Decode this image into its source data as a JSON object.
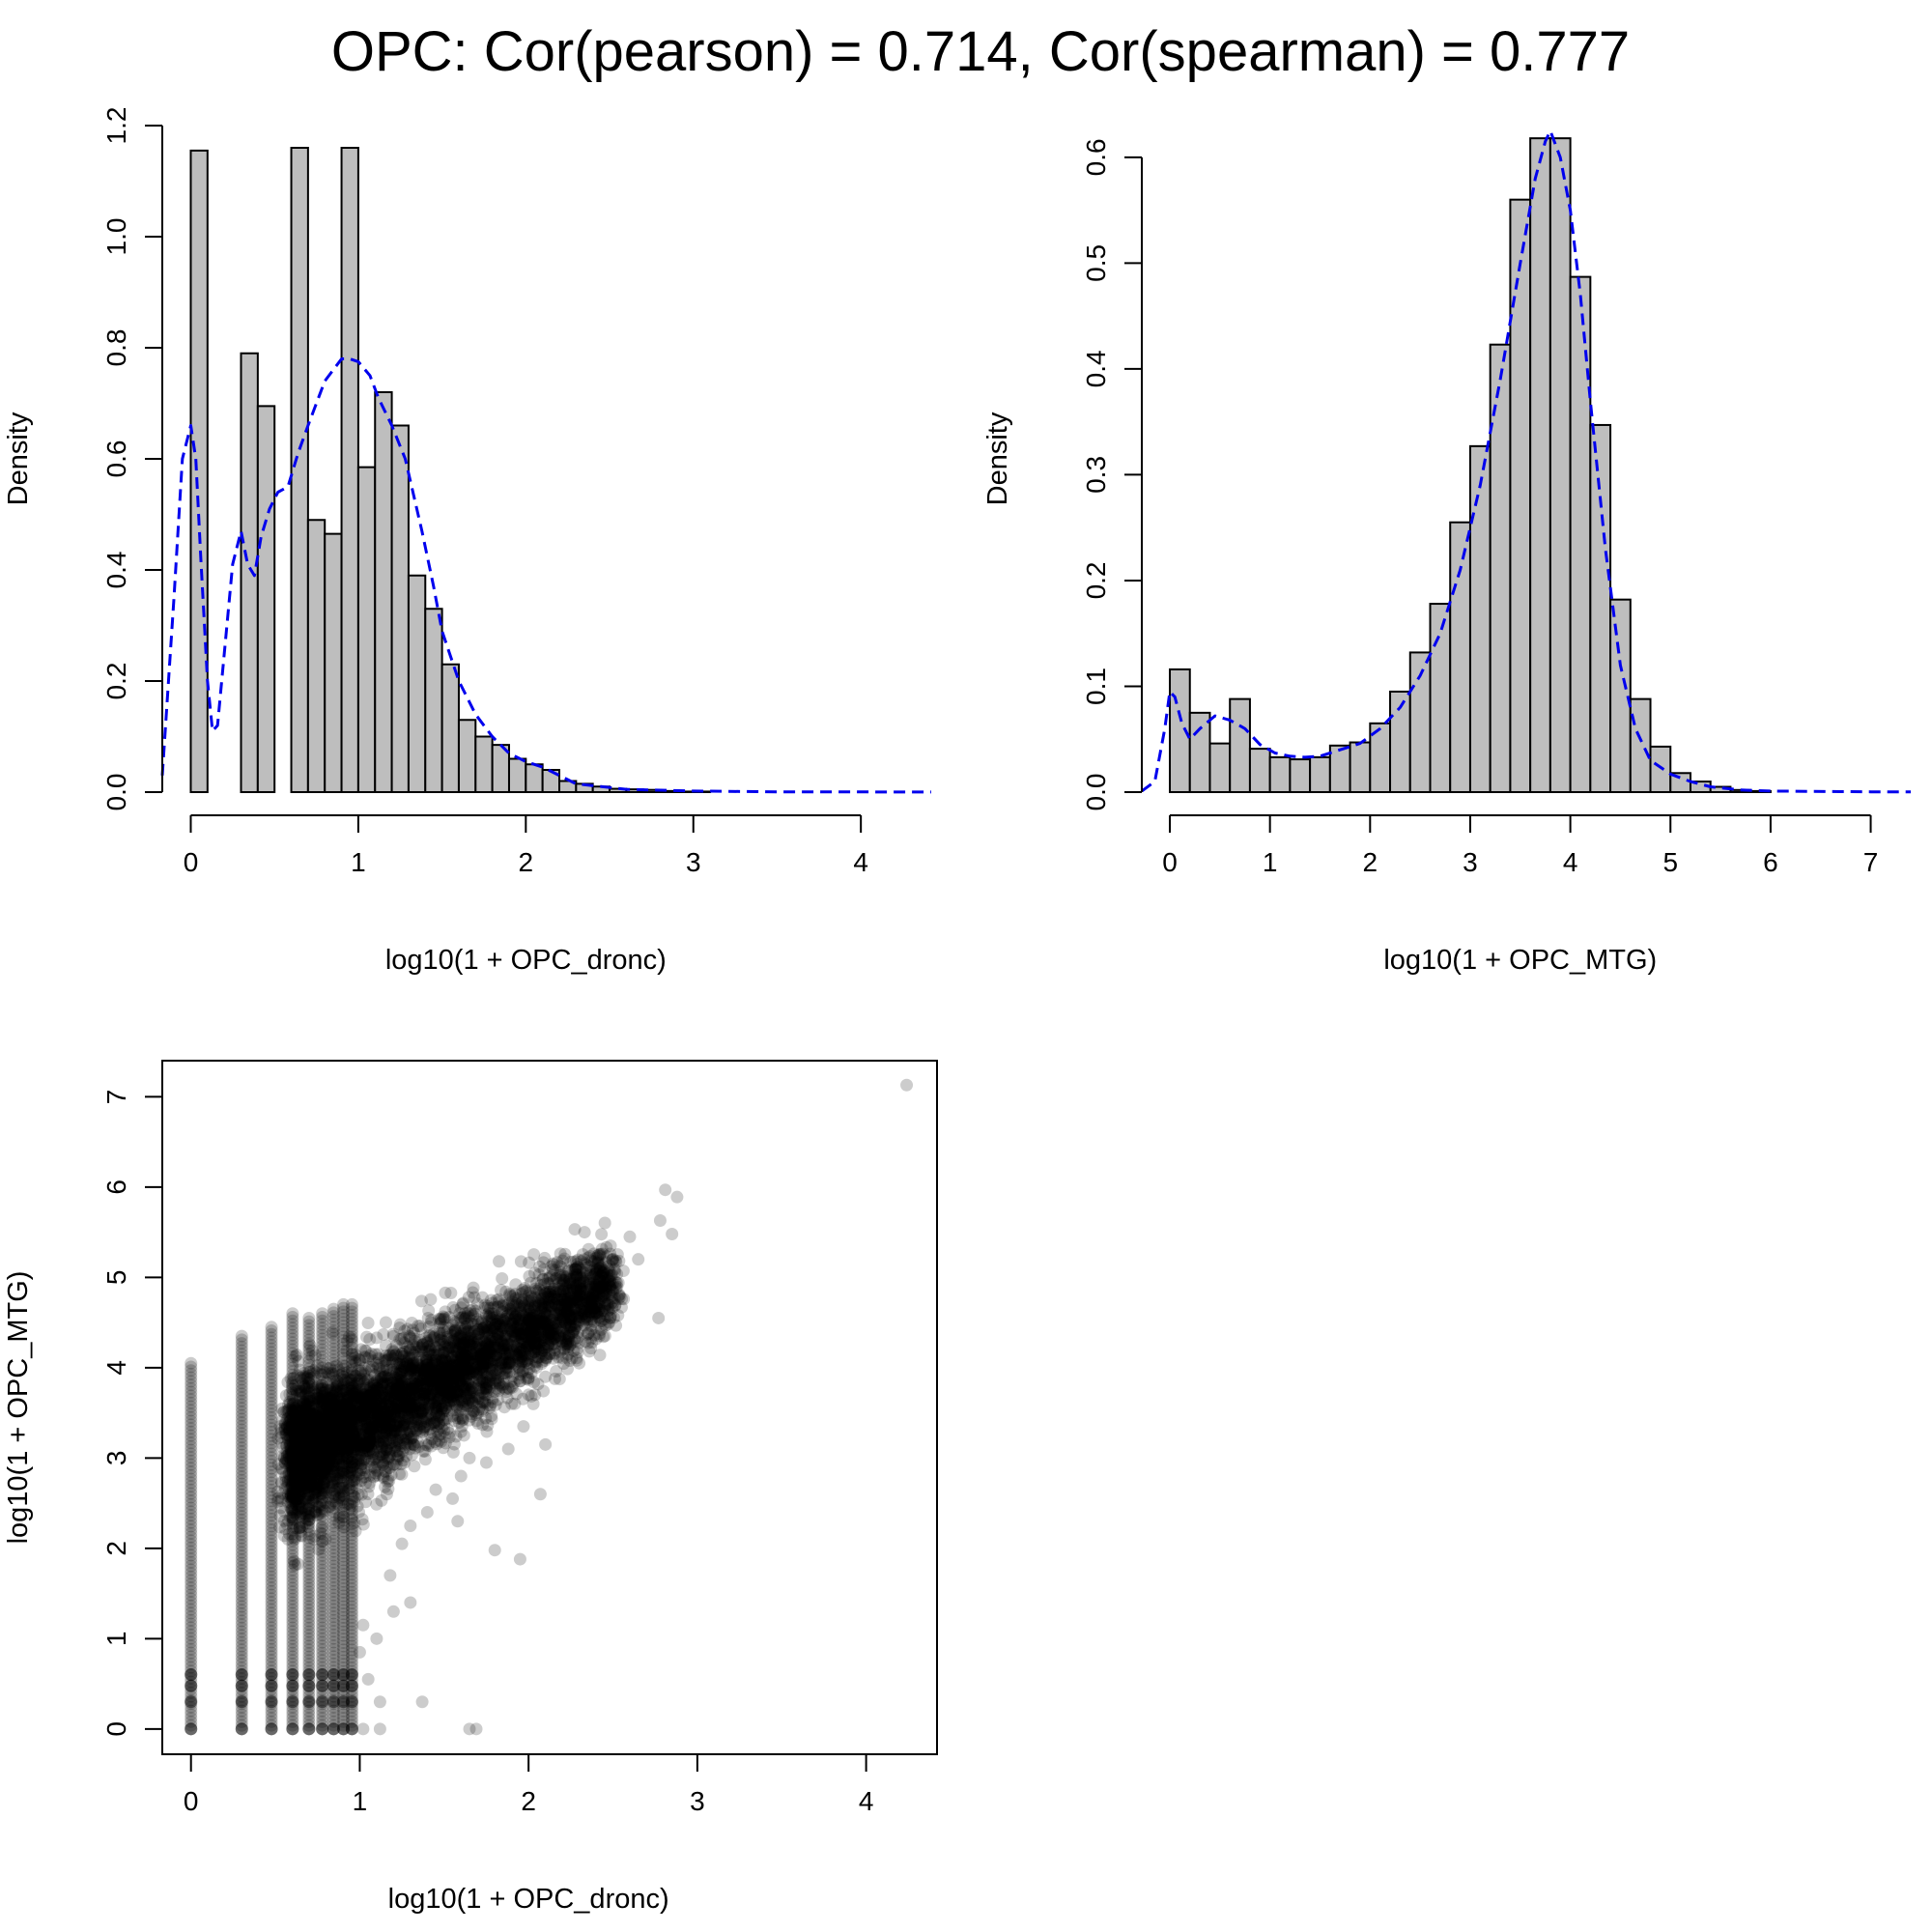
{
  "page_title": "OPC: Cor(pearson) = 0.714, Cor(spearman) = 0.777",
  "colors": {
    "bar_fill": "#bebebe",
    "bar_stroke": "#000000",
    "density_line": "#0000ee",
    "points": "#000000"
  },
  "chart_data": [
    {
      "type": "bar",
      "subtype": "histogram",
      "xlabel": "log10(1 + OPC_dronc)",
      "ylabel": "Density",
      "xlim": [
        -0.17,
        4.42
      ],
      "ylim": [
        0,
        1.2
      ],
      "xticks": [
        0,
        1,
        2,
        3,
        4
      ],
      "yticks": [
        0.0,
        0.2,
        0.4,
        0.6,
        0.8,
        1.0,
        1.2
      ],
      "bin_width": 0.1,
      "bins": [
        {
          "x0": 0.0,
          "x1": 0.1,
          "density": 1.155
        },
        {
          "x0": 0.3,
          "x1": 0.4,
          "density": 0.79
        },
        {
          "x0": 0.4,
          "x1": 0.5,
          "density": 0.695
        },
        {
          "x0": 0.6,
          "x1": 0.7,
          "density": 1.16
        },
        {
          "x0": 0.7,
          "x1": 0.8,
          "density": 0.49
        },
        {
          "x0": 0.8,
          "x1": 0.9,
          "density": 0.465
        },
        {
          "x0": 0.9,
          "x1": 1.0,
          "density": 1.16
        },
        {
          "x0": 1.0,
          "x1": 1.1,
          "density": 0.585
        },
        {
          "x0": 1.1,
          "x1": 1.2,
          "density": 0.72
        },
        {
          "x0": 1.2,
          "x1": 1.3,
          "density": 0.66
        },
        {
          "x0": 1.3,
          "x1": 1.4,
          "density": 0.39
        },
        {
          "x0": 1.4,
          "x1": 1.5,
          "density": 0.33
        },
        {
          "x0": 1.5,
          "x1": 1.6,
          "density": 0.23
        },
        {
          "x0": 1.6,
          "x1": 1.7,
          "density": 0.13
        },
        {
          "x0": 1.7,
          "x1": 1.8,
          "density": 0.1
        },
        {
          "x0": 1.8,
          "x1": 1.9,
          "density": 0.085
        },
        {
          "x0": 1.9,
          "x1": 2.0,
          "density": 0.06
        },
        {
          "x0": 2.0,
          "x1": 2.1,
          "density": 0.05
        },
        {
          "x0": 2.1,
          "x1": 2.2,
          "density": 0.04
        },
        {
          "x0": 2.2,
          "x1": 2.3,
          "density": 0.02
        },
        {
          "x0": 2.3,
          "x1": 2.4,
          "density": 0.015
        },
        {
          "x0": 2.4,
          "x1": 2.5,
          "density": 0.01
        },
        {
          "x0": 2.5,
          "x1": 2.6,
          "density": 0.006
        },
        {
          "x0": 2.6,
          "x1": 2.7,
          "density": 0.005
        },
        {
          "x0": 2.7,
          "x1": 2.8,
          "density": 0.004
        },
        {
          "x0": 2.8,
          "x1": 2.9,
          "density": 0.002
        },
        {
          "x0": 2.9,
          "x1": 3.0,
          "density": 0.001
        },
        {
          "x0": 3.0,
          "x1": 3.1,
          "density": 0.001
        }
      ],
      "density_curve": {
        "style": "dashed",
        "x": [
          -0.17,
          -0.1,
          -0.05,
          0.0,
          0.03,
          0.06,
          0.1,
          0.13,
          0.16,
          0.2,
          0.25,
          0.3,
          0.34,
          0.38,
          0.42,
          0.47,
          0.52,
          0.58,
          0.64,
          0.7,
          0.8,
          0.9,
          0.95,
          1.0,
          1.07,
          1.12,
          1.2,
          1.28,
          1.38,
          1.45,
          1.5,
          1.6,
          1.7,
          1.8,
          1.9,
          2.0,
          2.1,
          2.3,
          2.6,
          3.0,
          3.5,
          4.0,
          4.42
        ],
        "y": [
          0.03,
          0.35,
          0.6,
          0.66,
          0.6,
          0.42,
          0.2,
          0.11,
          0.12,
          0.25,
          0.41,
          0.47,
          0.41,
          0.39,
          0.46,
          0.51,
          0.54,
          0.55,
          0.61,
          0.66,
          0.74,
          0.78,
          0.78,
          0.775,
          0.75,
          0.71,
          0.66,
          0.6,
          0.47,
          0.37,
          0.29,
          0.2,
          0.14,
          0.1,
          0.07,
          0.055,
          0.045,
          0.015,
          0.005,
          0.002,
          0.0005,
          0.0003,
          0.0002
        ]
      }
    },
    {
      "type": "bar",
      "subtype": "histogram",
      "xlabel": "log10(1 + OPC_MTG)",
      "ylabel": "Density",
      "xlim": [
        -0.28,
        7.4
      ],
      "ylim": [
        0,
        0.63
      ],
      "xticks": [
        0,
        1,
        2,
        3,
        4,
        5,
        6,
        7
      ],
      "yticks": [
        0.0,
        0.1,
        0.2,
        0.3,
        0.4,
        0.5,
        0.6
      ],
      "bin_width": 0.2,
      "bins": [
        {
          "x0": 0.0,
          "x1": 0.2,
          "density": 0.116
        },
        {
          "x0": 0.2,
          "x1": 0.4,
          "density": 0.075
        },
        {
          "x0": 0.4,
          "x1": 0.6,
          "density": 0.046
        },
        {
          "x0": 0.6,
          "x1": 0.8,
          "density": 0.088
        },
        {
          "x0": 0.8,
          "x1": 1.0,
          "density": 0.041
        },
        {
          "x0": 1.0,
          "x1": 1.2,
          "density": 0.033
        },
        {
          "x0": 1.2,
          "x1": 1.4,
          "density": 0.031
        },
        {
          "x0": 1.4,
          "x1": 1.6,
          "density": 0.033
        },
        {
          "x0": 1.6,
          "x1": 1.8,
          "density": 0.044
        },
        {
          "x0": 1.8,
          "x1": 2.0,
          "density": 0.047
        },
        {
          "x0": 2.0,
          "x1": 2.2,
          "density": 0.065
        },
        {
          "x0": 2.2,
          "x1": 2.4,
          "density": 0.095
        },
        {
          "x0": 2.4,
          "x1": 2.6,
          "density": 0.132
        },
        {
          "x0": 2.6,
          "x1": 2.8,
          "density": 0.178
        },
        {
          "x0": 2.8,
          "x1": 3.0,
          "density": 0.255
        },
        {
          "x0": 3.0,
          "x1": 3.2,
          "density": 0.327
        },
        {
          "x0": 3.2,
          "x1": 3.4,
          "density": 0.423
        },
        {
          "x0": 3.4,
          "x1": 3.6,
          "density": 0.56
        },
        {
          "x0": 3.6,
          "x1": 3.8,
          "density": 0.618
        },
        {
          "x0": 3.8,
          "x1": 4.0,
          "density": 0.618
        },
        {
          "x0": 4.0,
          "x1": 4.2,
          "density": 0.487
        },
        {
          "x0": 4.2,
          "x1": 4.4,
          "density": 0.347
        },
        {
          "x0": 4.4,
          "x1": 4.6,
          "density": 0.182
        },
        {
          "x0": 4.6,
          "x1": 4.8,
          "density": 0.088
        },
        {
          "x0": 4.8,
          "x1": 5.0,
          "density": 0.043
        },
        {
          "x0": 5.0,
          "x1": 5.2,
          "density": 0.018
        },
        {
          "x0": 5.2,
          "x1": 5.4,
          "density": 0.01
        },
        {
          "x0": 5.4,
          "x1": 5.6,
          "density": 0.005
        },
        {
          "x0": 5.6,
          "x1": 5.8,
          "density": 0.002
        },
        {
          "x0": 5.8,
          "x1": 6.0,
          "density": 0.001
        }
      ],
      "density_curve": {
        "style": "dashed",
        "x": [
          -0.28,
          -0.15,
          -0.05,
          0.0,
          0.05,
          0.12,
          0.2,
          0.3,
          0.45,
          0.6,
          0.75,
          0.9,
          1.05,
          1.2,
          1.35,
          1.5,
          1.7,
          1.9,
          2.1,
          2.3,
          2.5,
          2.7,
          2.9,
          3.1,
          3.3,
          3.5,
          3.65,
          3.75,
          3.8,
          3.9,
          4.0,
          4.1,
          4.2,
          4.35,
          4.5,
          4.65,
          4.8,
          5.0,
          5.2,
          5.4,
          5.7,
          6.0,
          7.0,
          7.4
        ],
        "y": [
          0.001,
          0.01,
          0.06,
          0.095,
          0.09,
          0.065,
          0.05,
          0.06,
          0.072,
          0.068,
          0.06,
          0.045,
          0.037,
          0.034,
          0.033,
          0.034,
          0.04,
          0.046,
          0.06,
          0.08,
          0.11,
          0.15,
          0.21,
          0.29,
          0.39,
          0.5,
          0.58,
          0.615,
          0.625,
          0.6,
          0.55,
          0.47,
          0.37,
          0.23,
          0.12,
          0.06,
          0.03,
          0.017,
          0.01,
          0.005,
          0.002,
          0.001,
          0.0003,
          0.0002
        ]
      }
    },
    {
      "type": "scatter",
      "xlabel": "log10(1 + OPC_dronc)",
      "ylabel": "log10(1 + OPC_MTG)",
      "xlim": [
        -0.17,
        4.42
      ],
      "ylim": [
        -0.28,
        7.4
      ],
      "xticks": [
        0,
        1,
        2,
        3,
        4
      ],
      "yticks": [
        0,
        1,
        2,
        3,
        4,
        5,
        6,
        7
      ],
      "point_alpha": 0.2,
      "discrete_columns": [
        {
          "x": 0.0,
          "y_min": 0.0,
          "y_max": 4.05
        },
        {
          "x": 0.301,
          "y_min": 0.0,
          "y_max": 4.35
        },
        {
          "x": 0.477,
          "y_min": 0.0,
          "y_max": 4.45
        },
        {
          "x": 0.602,
          "y_min": 0.0,
          "y_max": 4.6
        },
        {
          "x": 0.699,
          "y_min": 0.0,
          "y_max": 4.55
        },
        {
          "x": 0.778,
          "y_min": 0.0,
          "y_max": 4.6
        },
        {
          "x": 0.845,
          "y_min": 0.0,
          "y_max": 4.65
        },
        {
          "x": 0.903,
          "y_min": 0.0,
          "y_max": 4.7
        },
        {
          "x": 0.954,
          "y_min": 0.0,
          "y_max": 4.7
        }
      ],
      "outliers": [
        [
          4.24,
          7.13
        ],
        [
          2.81,
          5.97
        ],
        [
          2.88,
          5.89
        ],
        [
          2.78,
          5.63
        ],
        [
          2.85,
          5.48
        ],
        [
          2.77,
          4.55
        ],
        [
          2.53,
          4.58
        ],
        [
          2.48,
          4.9
        ],
        [
          2.65,
          5.2
        ],
        [
          2.6,
          5.45
        ],
        [
          2.2,
          4.25
        ],
        [
          2.3,
          4.05
        ],
        [
          2.1,
          3.9
        ],
        [
          2.0,
          3.7
        ],
        [
          1.9,
          3.6
        ],
        [
          1.88,
          3.1
        ],
        [
          1.97,
          3.35
        ],
        [
          1.7,
          3.5
        ],
        [
          1.75,
          2.95
        ],
        [
          1.6,
          2.8
        ],
        [
          1.8,
          1.98
        ],
        [
          1.95,
          1.88
        ],
        [
          1.58,
          2.3
        ],
        [
          1.45,
          2.65
        ],
        [
          1.4,
          2.4
        ],
        [
          1.3,
          1.4
        ],
        [
          1.2,
          1.3
        ],
        [
          1.1,
          1.0
        ],
        [
          1.05,
          0.55
        ],
        [
          1.12,
          0.3
        ],
        [
          1.37,
          0.3
        ],
        [
          1.02,
          0.0
        ],
        [
          1.12,
          0.0
        ],
        [
          1.65,
          0.0
        ],
        [
          1.69,
          0.0
        ],
        [
          2.07,
          2.6
        ],
        [
          2.1,
          3.15
        ],
        [
          1.65,
          3.0
        ],
        [
          1.5,
          3.3
        ],
        [
          1.25,
          2.05
        ],
        [
          1.18,
          1.7
        ],
        [
          1.3,
          2.25
        ],
        [
          1.55,
          2.55
        ],
        [
          1.0,
          0.85
        ],
        [
          1.02,
          1.15
        ]
      ]
    }
  ]
}
